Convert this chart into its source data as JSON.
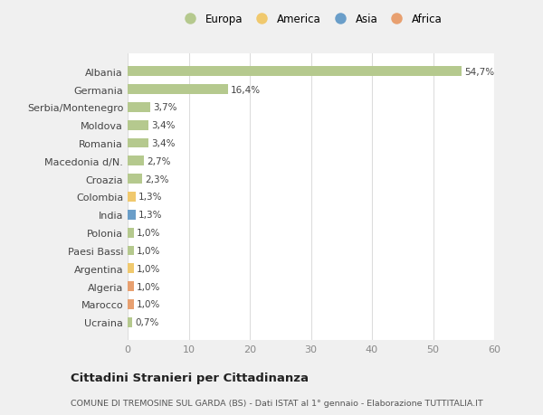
{
  "categories": [
    "Albania",
    "Germania",
    "Serbia/Montenegro",
    "Moldova",
    "Romania",
    "Macedonia d/N.",
    "Croazia",
    "Colombia",
    "India",
    "Polonia",
    "Paesi Bassi",
    "Argentina",
    "Algeria",
    "Marocco",
    "Ucraina"
  ],
  "values": [
    54.7,
    16.4,
    3.7,
    3.4,
    3.4,
    2.7,
    2.3,
    1.3,
    1.3,
    1.0,
    1.0,
    1.0,
    1.0,
    1.0,
    0.7
  ],
  "labels": [
    "54,7%",
    "16,4%",
    "3,7%",
    "3,4%",
    "3,4%",
    "2,7%",
    "2,3%",
    "1,3%",
    "1,3%",
    "1,0%",
    "1,0%",
    "1,0%",
    "1,0%",
    "1,0%",
    "0,7%"
  ],
  "continent": [
    "Europa",
    "Europa",
    "Europa",
    "Europa",
    "Europa",
    "Europa",
    "Europa",
    "America",
    "Asia",
    "Europa",
    "Europa",
    "America",
    "Africa",
    "Africa",
    "Europa"
  ],
  "colors": {
    "Europa": "#b5c98e",
    "America": "#f0c96e",
    "Asia": "#6a9ec9",
    "Africa": "#e8a070"
  },
  "legend_order": [
    "Europa",
    "America",
    "Asia",
    "Africa"
  ],
  "legend_colors": [
    "#b5c98e",
    "#f0c96e",
    "#6a9ec9",
    "#e8a070"
  ],
  "title": "Cittadini Stranieri per Cittadinanza",
  "subtitle": "COMUNE DI TREMOSINE SUL GARDA (BS) - Dati ISTAT al 1° gennaio - Elaborazione TUTTITALIA.IT",
  "xlim": [
    0,
    60
  ],
  "xticks": [
    0,
    10,
    20,
    30,
    40,
    50,
    60
  ],
  "bg_color": "#f0f0f0",
  "plot_bg_color": "#ffffff"
}
